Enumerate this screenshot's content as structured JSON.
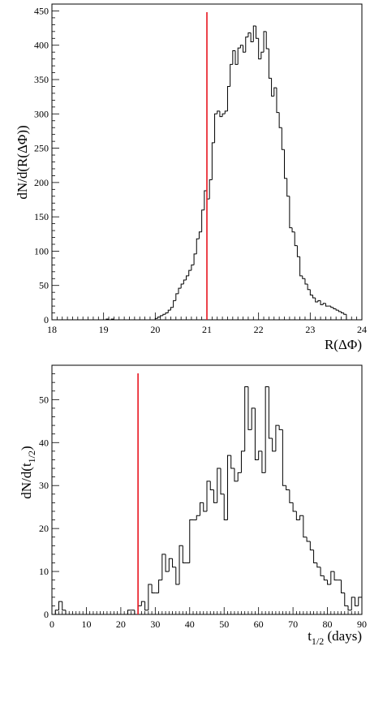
{
  "chart_data": [
    {
      "type": "bar",
      "style": "step-histogram",
      "xlabel": "R(ΔΦ)",
      "ylabel": "dN/d(R(ΔΦ))",
      "xlim": [
        18,
        24
      ],
      "ylim": [
        0,
        460
      ],
      "x_ticks": [
        18,
        19,
        20,
        21,
        22,
        23,
        24
      ],
      "y_ticks": [
        0,
        50,
        100,
        150,
        200,
        250,
        300,
        350,
        400,
        450
      ],
      "marker_line": {
        "x": 21,
        "color": "#e8141e"
      },
      "bin_width": 0.05,
      "bin_start": 18.0,
      "values": [
        0,
        0,
        0,
        0,
        0,
        0,
        0,
        0,
        0,
        0,
        0,
        0,
        0,
        0,
        0,
        0,
        0,
        0,
        0,
        0,
        0,
        1,
        0,
        1,
        0,
        0,
        0,
        0,
        0,
        0,
        0,
        0,
        0,
        0,
        0,
        0,
        0,
        0,
        0,
        0,
        2,
        4,
        6,
        8,
        10,
        14,
        18,
        28,
        38,
        46,
        52,
        58,
        64,
        72,
        80,
        96,
        118,
        128,
        160,
        188,
        176,
        204,
        258,
        300,
        304,
        296,
        300,
        304,
        340,
        372,
        392,
        372,
        396,
        400,
        390,
        412,
        418,
        405,
        428,
        410,
        380,
        390,
        420,
        395,
        352,
        326,
        338,
        302,
        280,
        248,
        206,
        180,
        134,
        128,
        108,
        92,
        64,
        60,
        52,
        44,
        36,
        32,
        26,
        28,
        22,
        24,
        20,
        20,
        18,
        16,
        14,
        12,
        10,
        8,
        0,
        0,
        0,
        0,
        0,
        0
      ]
    },
    {
      "type": "bar",
      "style": "step-histogram",
      "xlabel": "t_1/2 (days)",
      "ylabel": "dN/d(t_1/2)",
      "xlim": [
        0,
        90
      ],
      "ylim": [
        0,
        58
      ],
      "x_ticks": [
        0,
        10,
        20,
        30,
        40,
        50,
        60,
        70,
        80,
        90
      ],
      "y_ticks": [
        0,
        10,
        20,
        30,
        40,
        50
      ],
      "marker_line": {
        "x": 25,
        "color": "#e8141e"
      },
      "bin_width": 1,
      "bin_start": 0,
      "values": [
        0,
        1,
        3,
        1,
        0,
        0,
        0,
        0,
        0,
        0,
        0,
        0,
        0,
        0,
        0,
        0,
        0,
        0,
        0,
        0,
        0,
        0,
        1,
        1,
        0,
        2,
        3,
        1,
        7,
        5,
        5,
        8,
        14,
        10,
        13,
        11,
        7,
        16,
        12,
        12,
        22,
        22,
        23,
        26,
        24,
        31,
        29,
        26,
        34,
        28,
        22,
        37,
        34,
        31,
        33,
        38,
        53,
        43,
        48,
        36,
        38,
        33,
        53,
        41,
        38,
        44,
        43,
        30,
        29,
        26,
        24,
        22,
        23,
        18,
        17,
        15,
        12,
        11,
        9,
        8,
        7,
        10,
        8,
        8,
        5,
        2,
        1,
        4,
        2,
        4
      ]
    }
  ],
  "charts": [
    {
      "xlabel_main": "R(ΔΦ)",
      "xlabel_sub": "",
      "xlabel_suffix": "",
      "ylabel_main": "dN/d(R(ΔΦ))",
      "ylabel_sub": "",
      "ylabel_suffix": ""
    },
    {
      "xlabel_main": "t",
      "xlabel_sub": "1/2",
      "xlabel_suffix": " (days)",
      "ylabel_main": "dN/d(t",
      "ylabel_sub": "1/2",
      "ylabel_suffix": ")"
    }
  ]
}
